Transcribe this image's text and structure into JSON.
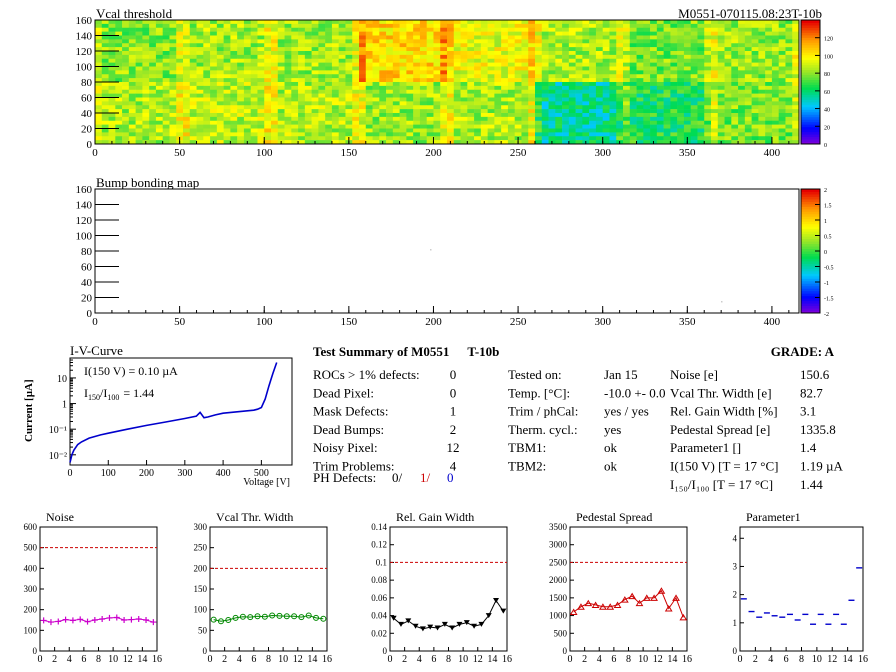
{
  "header": {
    "module_id": "M0551-070115.08:23T-10b"
  },
  "maps": [
    {
      "title": "Vcal threshold",
      "x_ticks": [
        "0",
        "50",
        "100",
        "150",
        "200",
        "250",
        "300",
        "350",
        "400"
      ],
      "y_ticks": [
        "0",
        "20",
        "40",
        "60",
        "80",
        "100",
        "120",
        "140",
        "160"
      ],
      "xlim": [
        0,
        416
      ],
      "ylim": [
        0,
        160
      ],
      "palette_labels": [
        "0",
        "20",
        "40",
        "60",
        "80",
        "100",
        "120"
      ],
      "palette_range": [
        0,
        140
      ],
      "roc_levels": [
        [
          85,
          88,
          86,
          83,
          85,
          55,
          65,
          78
        ],
        [
          80,
          84,
          83,
          105,
          95,
          85,
          78,
          82
        ]
      ]
    },
    {
      "title": "Bump bonding map",
      "x_ticks": [
        "0",
        "50",
        "100",
        "150",
        "200",
        "250",
        "300",
        "350",
        "400"
      ],
      "y_ticks": [
        "0",
        "20",
        "40",
        "60",
        "80",
        "100",
        "120",
        "140",
        "160"
      ],
      "xlim": [
        0,
        416
      ],
      "ylim": [
        0,
        160
      ],
      "palette_labels": [
        "-2",
        "-1.5",
        "-1",
        "-0.5",
        "0",
        "0.5",
        "1",
        "1.5",
        "2"
      ],
      "palette_range": [
        -2,
        2
      ]
    }
  ],
  "iv": {
    "title": "I-V-Curve",
    "ylabel": "Current [µA]",
    "xlabel": "Voltage [V]",
    "x_ticks": [
      "0",
      "100",
      "200",
      "300",
      "400",
      "500"
    ],
    "y_ticks": [
      "10⁻²",
      "10⁻¹",
      "1",
      "10"
    ],
    "annotation1": "I(150 V) = 0.10 µA",
    "annotation2_prefix": "I",
    "annotation2_sub1": "150",
    "annotation2_mid": "/I",
    "annotation2_sub2": "100",
    "annotation2_value": "=  1.44"
  },
  "summary": {
    "title": "Test Summary of M0551",
    "tag": "T-10b",
    "grade_label": "GRADE:  A",
    "left": [
      {
        "label": "ROCs > 1% defects:",
        "value": "0"
      },
      {
        "label": "Dead Pixel:",
        "value": "0"
      },
      {
        "label": "Mask Defects:",
        "value": "1"
      },
      {
        "label": "Dead Bumps:",
        "value": "2"
      },
      {
        "label": "Noisy Pixel:",
        "value": "12"
      },
      {
        "label": "Trim Problems:",
        "value": "4"
      }
    ],
    "ph_label": "PH Defects:",
    "ph_values": [
      "0/",
      "1/",
      "0"
    ],
    "middle": [
      {
        "label": "Tested on:",
        "value": "Jan 15"
      },
      {
        "label": "Temp. [°C]:",
        "value": "-10.0 +- 0.0"
      },
      {
        "label": "Trim / phCal:",
        "value": "yes / yes"
      },
      {
        "label": "Therm. cycl.:",
        "value": "yes"
      },
      {
        "label": "TBM1:",
        "value": "ok"
      },
      {
        "label": "TBM2:",
        "value": "ok"
      }
    ],
    "right": [
      {
        "label": "Noise [e]",
        "value": "150.6"
      },
      {
        "label": "Vcal Thr. Width [e]",
        "value": "82.7"
      },
      {
        "label": "Rel. Gain Width [%]",
        "value": "3.1"
      },
      {
        "label": "Pedestal Spread [e]",
        "value": "1335.8"
      },
      {
        "label": "Parameter1 []",
        "value": "1.4"
      },
      {
        "label": "I(150 V)  [T = 17 °C]",
        "value": "1.19 µA"
      },
      {
        "label": "I₁₅₀/I₁₀₀  [T = 17 °C]",
        "value": "1.44"
      }
    ],
    "colors": {
      "ph_red": "#cc0000",
      "ph_blue": "#0000cc"
    }
  },
  "chart_data": [
    {
      "type": "line",
      "title": "I-V-Curve",
      "xlabel": "Voltage [V]",
      "ylabel": "Current [µA]",
      "yscale": "log",
      "xlim": [
        0,
        580
      ],
      "ylim": [
        0.004,
        60
      ],
      "color": "#0000cc",
      "x": [
        0,
        5,
        10,
        20,
        30,
        50,
        80,
        100,
        150,
        200,
        250,
        300,
        330,
        340,
        350,
        360,
        380,
        400,
        450,
        480,
        490,
        500,
        510,
        520,
        530,
        540
      ],
      "y": [
        0.005,
        0.01,
        0.015,
        0.025,
        0.032,
        0.045,
        0.06,
        0.07,
        0.1,
        0.14,
        0.19,
        0.26,
        0.32,
        0.45,
        0.28,
        0.3,
        0.36,
        0.42,
        0.5,
        0.55,
        0.6,
        0.7,
        1.5,
        5,
        15,
        40
      ]
    },
    {
      "type": "scatter",
      "title": "Noise",
      "xlim": [
        0,
        16
      ],
      "ylim": [
        0,
        600
      ],
      "x_ticks": [
        "0",
        "2",
        "4",
        "6",
        "8",
        "10",
        "12",
        "14",
        "16"
      ],
      "y_ticks": [
        "0",
        "100",
        "200",
        "300",
        "400",
        "500",
        "600"
      ],
      "threshold": 500,
      "marker": "star",
      "color": "#cc00cc",
      "x": [
        0,
        1,
        2,
        3,
        4,
        5,
        6,
        7,
        8,
        9,
        10,
        11,
        12,
        13,
        14,
        15
      ],
      "y": [
        148,
        140,
        143,
        152,
        148,
        153,
        142,
        150,
        155,
        160,
        162,
        150,
        152,
        155,
        150,
        140
      ]
    },
    {
      "type": "scatter",
      "title": "Vcal Thr. Width",
      "xlim": [
        0,
        16
      ],
      "ylim": [
        0,
        300
      ],
      "x_ticks": [
        "0",
        "2",
        "4",
        "6",
        "8",
        "10",
        "12",
        "14",
        "16"
      ],
      "y_ticks": [
        "0",
        "50",
        "100",
        "150",
        "200",
        "250",
        "300"
      ],
      "threshold": 200,
      "marker": "circle",
      "color": "#008800",
      "x": [
        0,
        1,
        2,
        3,
        4,
        5,
        6,
        7,
        8,
        9,
        10,
        11,
        12,
        13,
        14,
        15
      ],
      "y": [
        76,
        72,
        75,
        80,
        83,
        82,
        84,
        83,
        86,
        85,
        84,
        84,
        82,
        86,
        80,
        78
      ]
    },
    {
      "type": "scatter",
      "title": "Rel. Gain Width",
      "xlim": [
        0,
        16
      ],
      "ylim": [
        0,
        0.14
      ],
      "x_ticks": [
        "0",
        "2",
        "4",
        "6",
        "8",
        "10",
        "12",
        "14",
        "16"
      ],
      "y_ticks": [
        "0",
        "0.02",
        "0.04",
        "0.06",
        "0.08",
        "0.1",
        "0.12",
        "0.14"
      ],
      "threshold": 0.1,
      "marker": "triangle-down",
      "color": "#000000",
      "x": [
        0,
        1,
        2,
        3,
        4,
        5,
        6,
        7,
        8,
        9,
        10,
        11,
        12,
        13,
        14,
        15
      ],
      "y": [
        0.037,
        0.03,
        0.034,
        0.028,
        0.025,
        0.027,
        0.026,
        0.03,
        0.026,
        0.03,
        0.032,
        0.028,
        0.03,
        0.04,
        0.057,
        0.045
      ]
    },
    {
      "type": "scatter",
      "title": "Pedestal Spread",
      "xlim": [
        0,
        16
      ],
      "ylim": [
        0,
        3500
      ],
      "x_ticks": [
        "0",
        "2",
        "4",
        "6",
        "8",
        "10",
        "12",
        "14",
        "16"
      ],
      "y_ticks": [
        "0",
        "500",
        "1000",
        "1500",
        "2000",
        "2500",
        "3000",
        "3500"
      ],
      "threshold": 2500,
      "marker": "triangle-up",
      "color": "#cc0000",
      "x": [
        0,
        1,
        2,
        3,
        4,
        5,
        6,
        7,
        8,
        9,
        10,
        11,
        12,
        13,
        14,
        15
      ],
      "y": [
        1100,
        1250,
        1350,
        1300,
        1250,
        1250,
        1300,
        1450,
        1550,
        1350,
        1500,
        1500,
        1700,
        1200,
        1500,
        950
      ]
    },
    {
      "type": "scatter",
      "title": "Parameter1",
      "xlim": [
        0,
        16
      ],
      "ylim": [
        0,
        4.4
      ],
      "x_ticks": [
        "0",
        "2",
        "4",
        "6",
        "8",
        "10",
        "12",
        "14",
        "16"
      ],
      "y_ticks": [
        "0",
        "1",
        "2",
        "3",
        "4"
      ],
      "marker": "hbar",
      "color": "#0000cc",
      "x": [
        0,
        1,
        2,
        3,
        4,
        5,
        6,
        7,
        8,
        9,
        10,
        11,
        12,
        13,
        14,
        15
      ],
      "y": [
        1.85,
        1.4,
        1.2,
        1.35,
        1.25,
        1.2,
        1.3,
        1.1,
        1.3,
        0.95,
        1.3,
        0.95,
        1.3,
        0.95,
        1.8,
        2.95
      ]
    }
  ]
}
